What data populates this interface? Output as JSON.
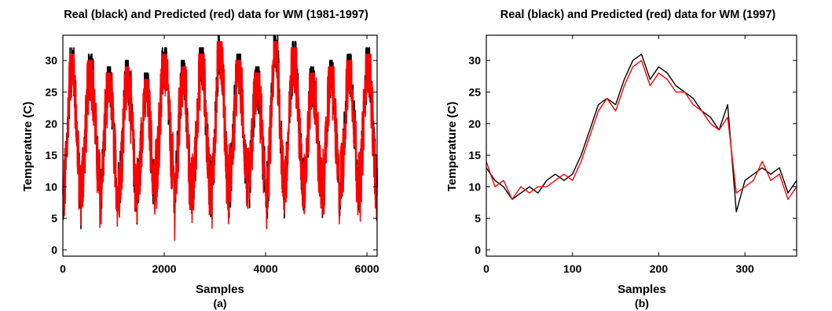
{
  "chart_data": [
    {
      "type": "line",
      "panel": "left",
      "title": "Real (black) and Predicted (red) data for WM (1981-1997)",
      "xlabel": "Samples",
      "ylabel": "Temperature (C)",
      "sublabel": "(a)",
      "xlim": [
        0,
        6200
      ],
      "ylim": [
        -1,
        34
      ],
      "xticks": [
        0,
        2000,
        4000,
        6000
      ],
      "yticks": [
        0,
        5,
        10,
        15,
        20,
        25,
        30
      ],
      "grid": false,
      "series_colors": [
        "#000000",
        "#ff0000"
      ],
      "generator": {
        "years": 17,
        "period": 365,
        "x_start": 0,
        "peaks": [
          31,
          30,
          28,
          29,
          27,
          31,
          29,
          31,
          33,
          30,
          28,
          33,
          32,
          28,
          29,
          30,
          31
        ],
        "troughs": [
          1,
          4,
          2,
          3,
          2,
          5,
          1,
          3,
          2,
          4,
          3,
          2,
          4,
          3,
          2,
          4,
          3
        ]
      }
    },
    {
      "type": "line",
      "panel": "right",
      "title": "Real (black) and Predicted (red) data for WM (1997)",
      "xlabel": "Samples",
      "ylabel": "Temperature (C)",
      "sublabel": "(b)",
      "xlim": [
        0,
        360
      ],
      "ylim": [
        -1,
        34
      ],
      "xticks": [
        0,
        100,
        200,
        300
      ],
      "yticks": [
        0,
        5,
        10,
        15,
        20,
        25,
        30
      ],
      "grid": false,
      "series_colors": [
        "#000000",
        "#ff0000"
      ],
      "series": [
        {
          "name": "Real",
          "x": [
            0,
            10,
            20,
            30,
            40,
            50,
            60,
            70,
            80,
            90,
            100,
            110,
            120,
            130,
            140,
            150,
            160,
            170,
            180,
            190,
            200,
            210,
            220,
            230,
            240,
            250,
            260,
            270,
            280,
            290,
            300,
            310,
            320,
            330,
            340,
            350,
            360
          ],
          "values": [
            13,
            11,
            10,
            8,
            9,
            10,
            9,
            11,
            12,
            11,
            12,
            15,
            19,
            23,
            24,
            23,
            27,
            30,
            31,
            27,
            29,
            28,
            26,
            25,
            24,
            22,
            21,
            19,
            23,
            6,
            11,
            12,
            13,
            12,
            13,
            9,
            11
          ]
        },
        {
          "name": "Predicted",
          "x": [
            0,
            10,
            20,
            30,
            40,
            50,
            60,
            70,
            80,
            90,
            100,
            110,
            120,
            130,
            140,
            150,
            160,
            170,
            180,
            190,
            200,
            210,
            220,
            230,
            240,
            250,
            260,
            270,
            280,
            290,
            300,
            310,
            320,
            330,
            340,
            350,
            360
          ],
          "values": [
            14,
            10,
            11,
            8,
            10,
            9,
            10,
            10,
            11,
            12,
            11,
            14,
            18,
            22,
            24,
            22,
            26,
            29,
            30,
            26,
            28,
            27,
            25,
            25,
            23,
            22,
            20,
            19,
            21,
            9,
            10,
            11,
            14,
            11,
            12,
            8,
            10
          ]
        }
      ]
    }
  ]
}
